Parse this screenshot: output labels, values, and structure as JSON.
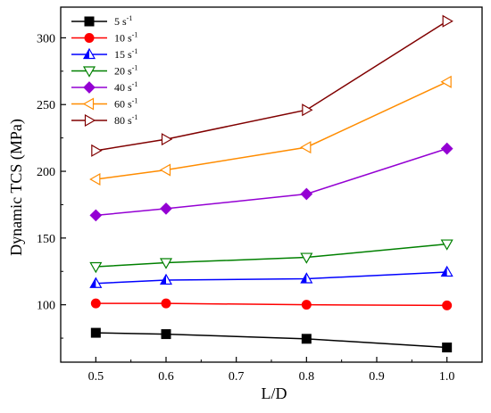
{
  "chart_data": {
    "type": "line",
    "title": "",
    "xlabel": "L/D",
    "ylabel": "Dynamic TCS (MPa)",
    "xlim": [
      0.45,
      1.05
    ],
    "ylim": [
      57,
      323
    ],
    "xticks": [
      0.5,
      0.6,
      0.7,
      0.8,
      0.9,
      1.0
    ],
    "xtick_labels": [
      "0.5",
      "0.6",
      "0.7",
      "0.8",
      "0.9",
      "1.0"
    ],
    "yticks": [
      100,
      150,
      200,
      250,
      300
    ],
    "ytick_labels": [
      "100",
      "150",
      "200",
      "250",
      "300"
    ],
    "grid": false,
    "legend_position": "top-left",
    "x": [
      0.5,
      0.6,
      0.8,
      1.0
    ],
    "series": [
      {
        "name": "5 s",
        "unit_sup": "-1",
        "marker": "square",
        "color": "#000000",
        "values": [
          79,
          78,
          74.5,
          68
        ]
      },
      {
        "name": "10 s",
        "unit_sup": "-1",
        "marker": "circle",
        "color": "#ff0000",
        "values": [
          101,
          101,
          100,
          99.5
        ]
      },
      {
        "name": "15 s",
        "unit_sup": "-1",
        "marker": "triangle-up",
        "color": "#0000ff",
        "values": [
          116,
          118.5,
          119.5,
          124.5
        ]
      },
      {
        "name": "20 s",
        "unit_sup": "-1",
        "marker": "triangle-down",
        "color": "#008000",
        "values": [
          128.5,
          131.5,
          135.5,
          145.5
        ]
      },
      {
        "name": "40 s",
        "unit_sup": "-1",
        "marker": "diamond",
        "color": "#9400d3",
        "values": [
          167,
          172,
          183,
          217
        ]
      },
      {
        "name": "60 s",
        "unit_sup": "-1",
        "marker": "triangle-left",
        "color": "#ff8c00",
        "values": [
          194,
          201,
          218,
          267
        ]
      },
      {
        "name": "80 s",
        "unit_sup": "-1",
        "marker": "triangle-right",
        "color": "#800000",
        "values": [
          215.5,
          224,
          246,
          312.5
        ]
      }
    ]
  }
}
